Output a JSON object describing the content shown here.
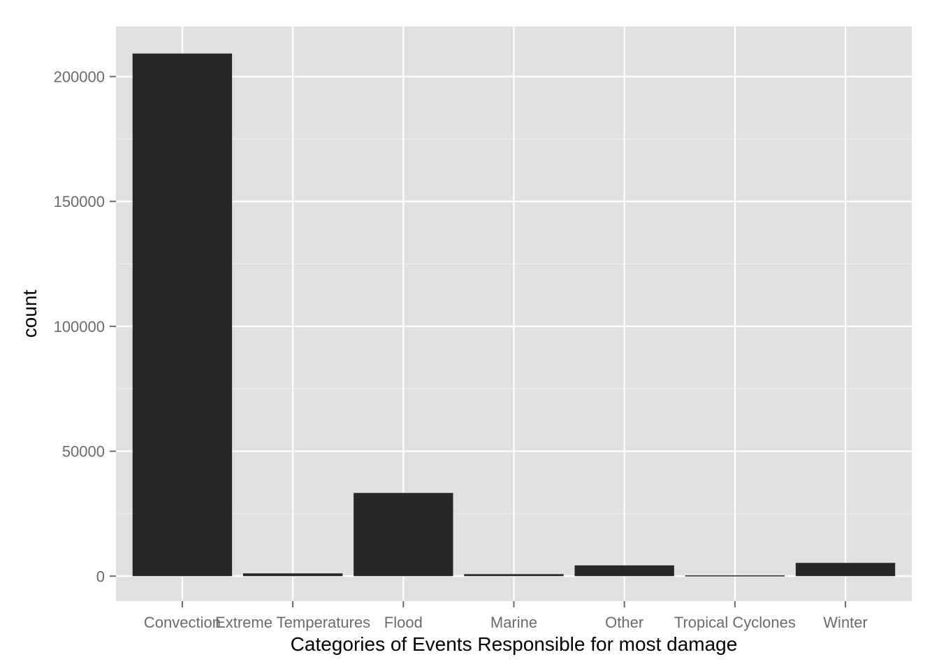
{
  "colors": {
    "panel_background": "#e0e0e0",
    "gridline": "#ffffff",
    "bar_fill": "#272727",
    "tick_text": "#6b6b6b",
    "title_text": "#000000"
  },
  "chart_data": {
    "type": "bar",
    "title": "",
    "xlabel": "Categories of Events Responsible for most damage",
    "ylabel": "count",
    "categories": [
      "Convection",
      "Extreme Temperatures",
      "Flood",
      "Marine",
      "Other",
      "Tropical Cyclones",
      "Winter"
    ],
    "values": [
      209200,
      1100,
      33300,
      800,
      4300,
      300,
      5300
    ],
    "ylim": [
      -10000,
      220000
    ],
    "yticks": [
      0,
      50000,
      100000,
      150000,
      200000
    ],
    "ytick_labels": [
      "0",
      "50000",
      "100000",
      "150000",
      "200000"
    ],
    "grid": true,
    "legend": "none"
  }
}
